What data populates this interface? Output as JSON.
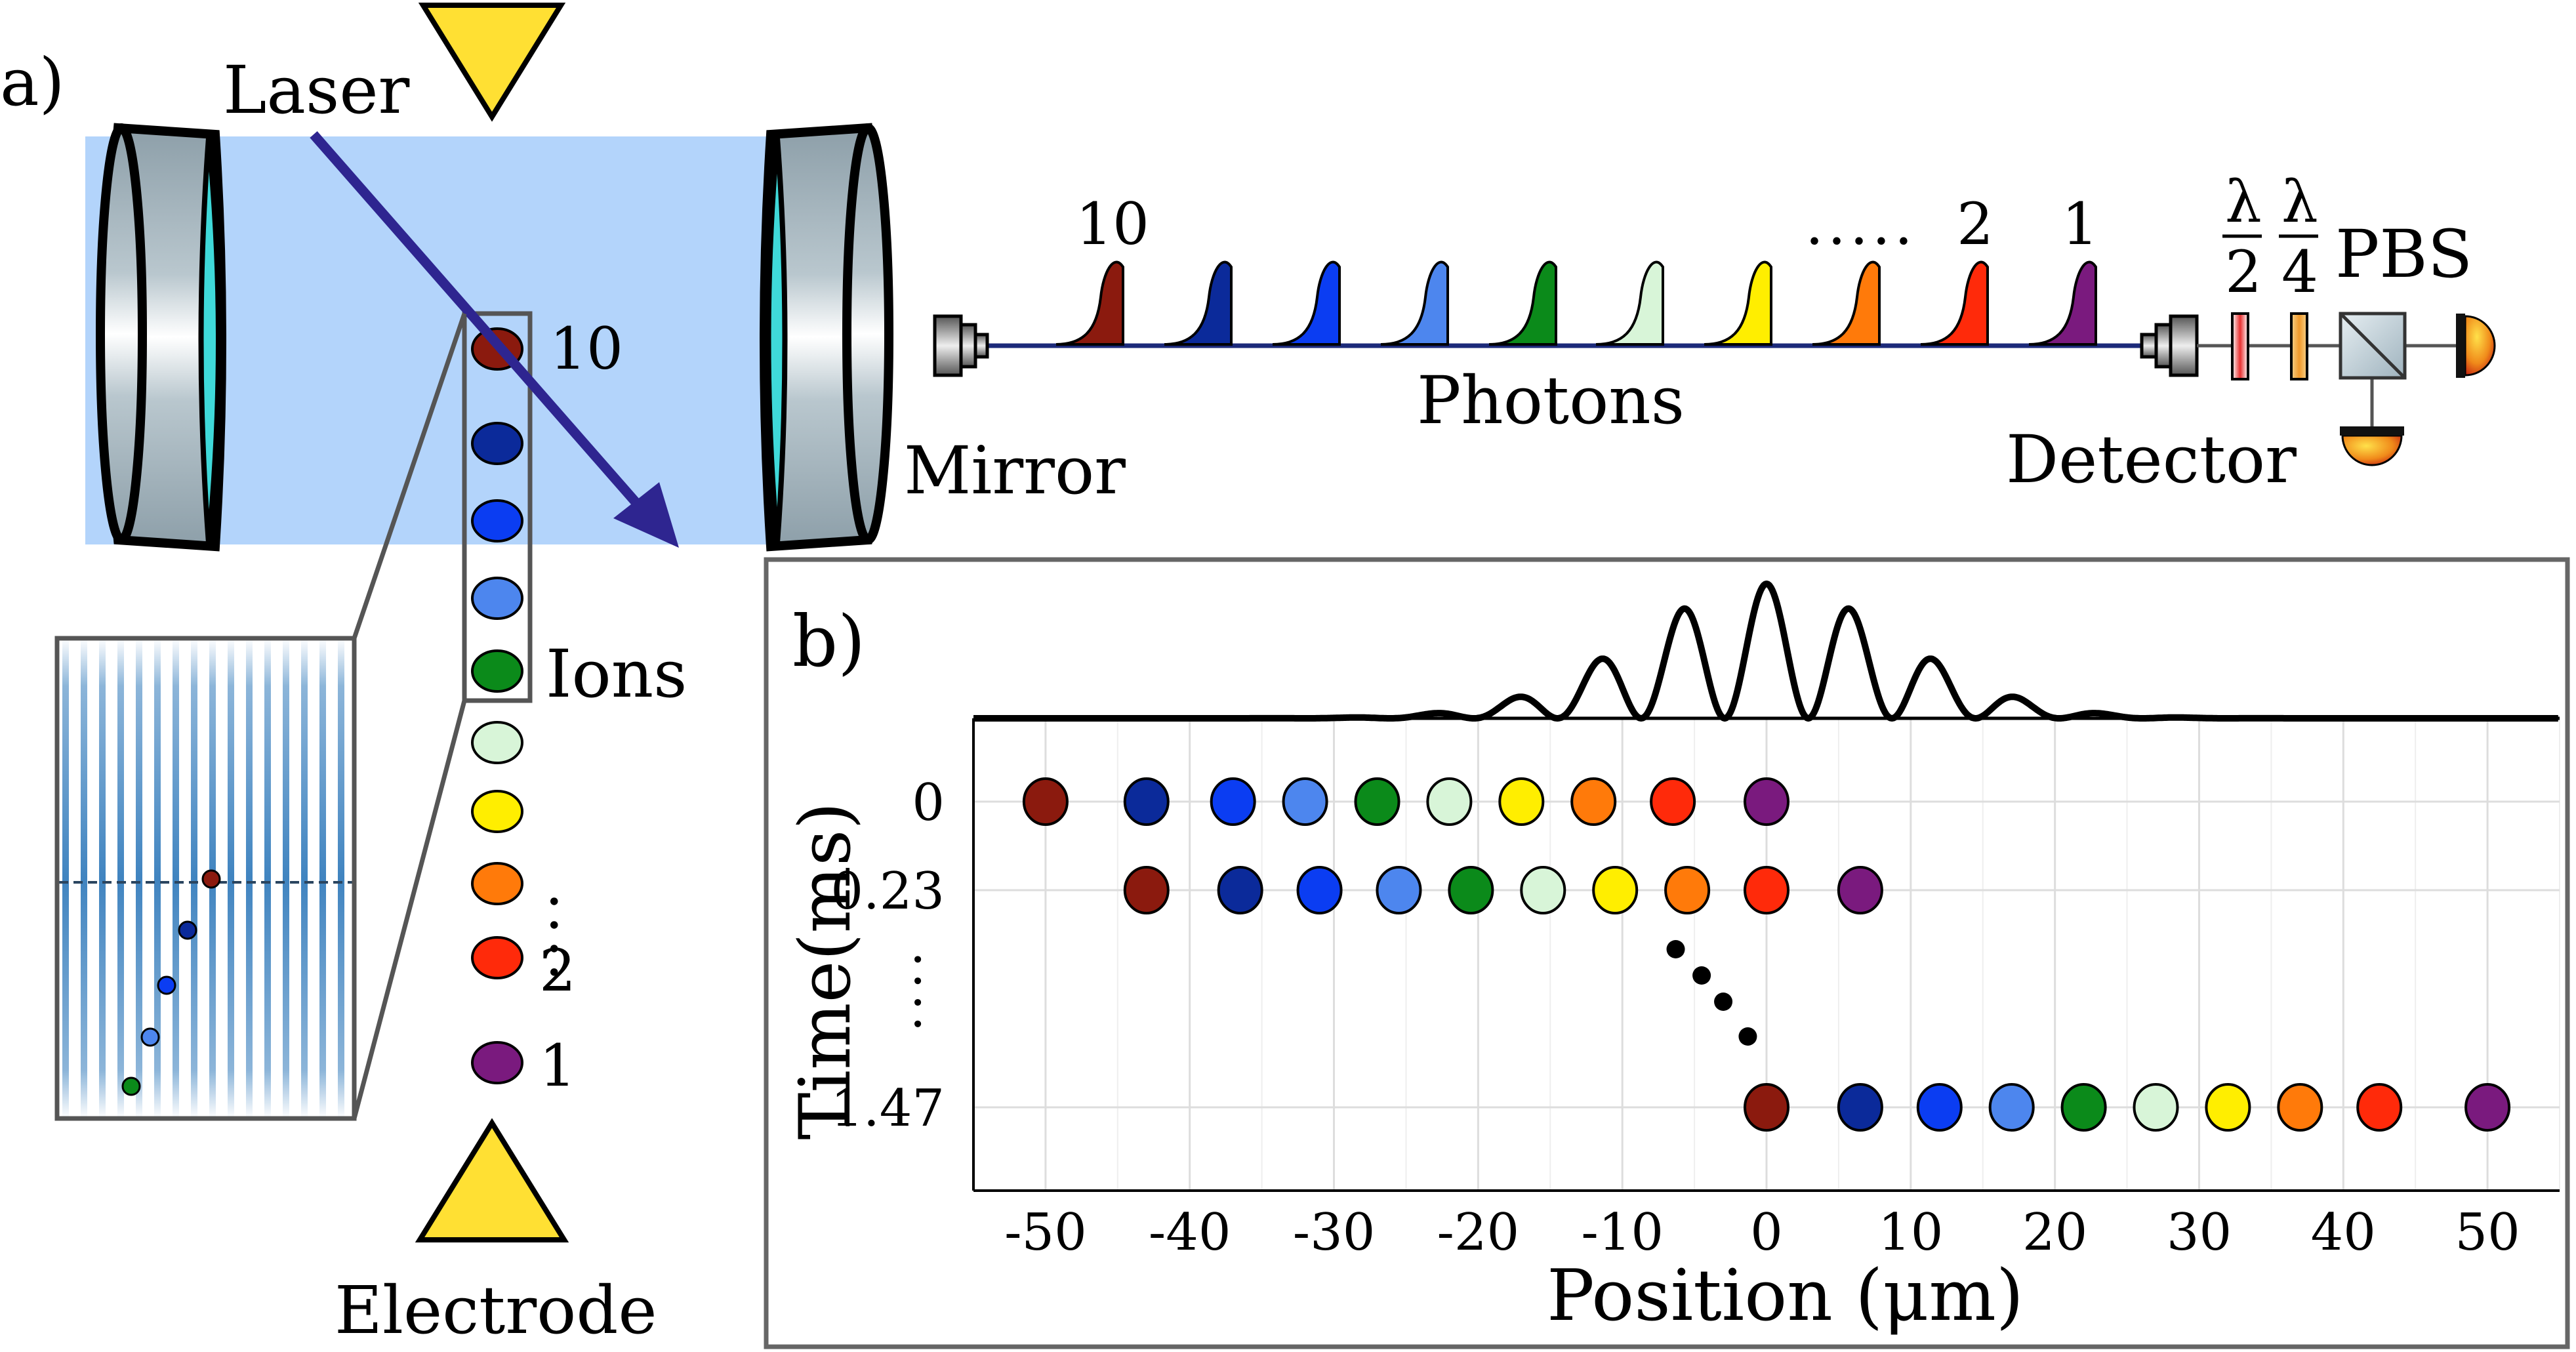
{
  "panel_a": {
    "label": "a)",
    "laser": "Laser",
    "mirror": "Mirror",
    "photons": "Photons",
    "detector": "Detector",
    "ions": "Ions",
    "electrode": "Electrode",
    "pbs": "PBS",
    "half_wave_num": "λ",
    "half_wave_den": "2",
    "quarter_wave_num": "λ",
    "quarter_wave_den": "4",
    "photon_label_first": "10",
    "photon_label_dots": ".....",
    "photon_label_second": "2",
    "photon_label_last": "1",
    "ion_label_top": "10",
    "ion_label_dots": "....",
    "ion_label_2": "2",
    "ion_label_1": "1"
  },
  "ion_colors": [
    "#8b1a0e",
    "#0b2a9a",
    "#0b3df2",
    "#4d86ee",
    "#0b8a1a",
    "#d8f5d8",
    "#ffee00",
    "#ff7a0a",
    "#ff2a0a",
    "#7a1a7e"
  ],
  "colors": {
    "cavity_beam": "#b3d4fb",
    "laser": "#2e2590",
    "lens": "#3fd9d9",
    "mirror_body": "#9aacb6",
    "panel_border": "#666666",
    "fringe": "#1e6fb5"
  },
  "panel_b": {
    "label": "b)",
    "chart_data": {
      "type": "scatter",
      "xlabel": "Position (μm)",
      "ylabel": "Time(ms)",
      "xlim": [
        -55,
        55
      ],
      "x_ticks": [
        -50,
        -40,
        -30,
        -20,
        -10,
        0,
        10,
        20,
        30,
        40,
        50
      ],
      "y_ticks": [
        "0",
        "0.23",
        "1.47"
      ],
      "y_dots": "....",
      "series": [
        {
          "time": "0",
          "x": [
            -50,
            -43,
            -37,
            -32,
            -27,
            -22,
            -17,
            -12,
            -6.5,
            0
          ]
        },
        {
          "time": "0.23",
          "x": [
            -43,
            -36.5,
            -31,
            -25.5,
            -20.5,
            -15.5,
            -10.5,
            -5.5,
            0,
            6.5
          ]
        },
        {
          "time": "1.47",
          "x": [
            0,
            6.5,
            12,
            17,
            22,
            27,
            32,
            37,
            42.5,
            50
          ]
        }
      ],
      "transition_dots_x": [
        -6.3,
        -4.5,
        -3,
        -1.3
      ],
      "envelope": {
        "center": 0,
        "period": 5.8,
        "sigma": 9
      }
    }
  }
}
